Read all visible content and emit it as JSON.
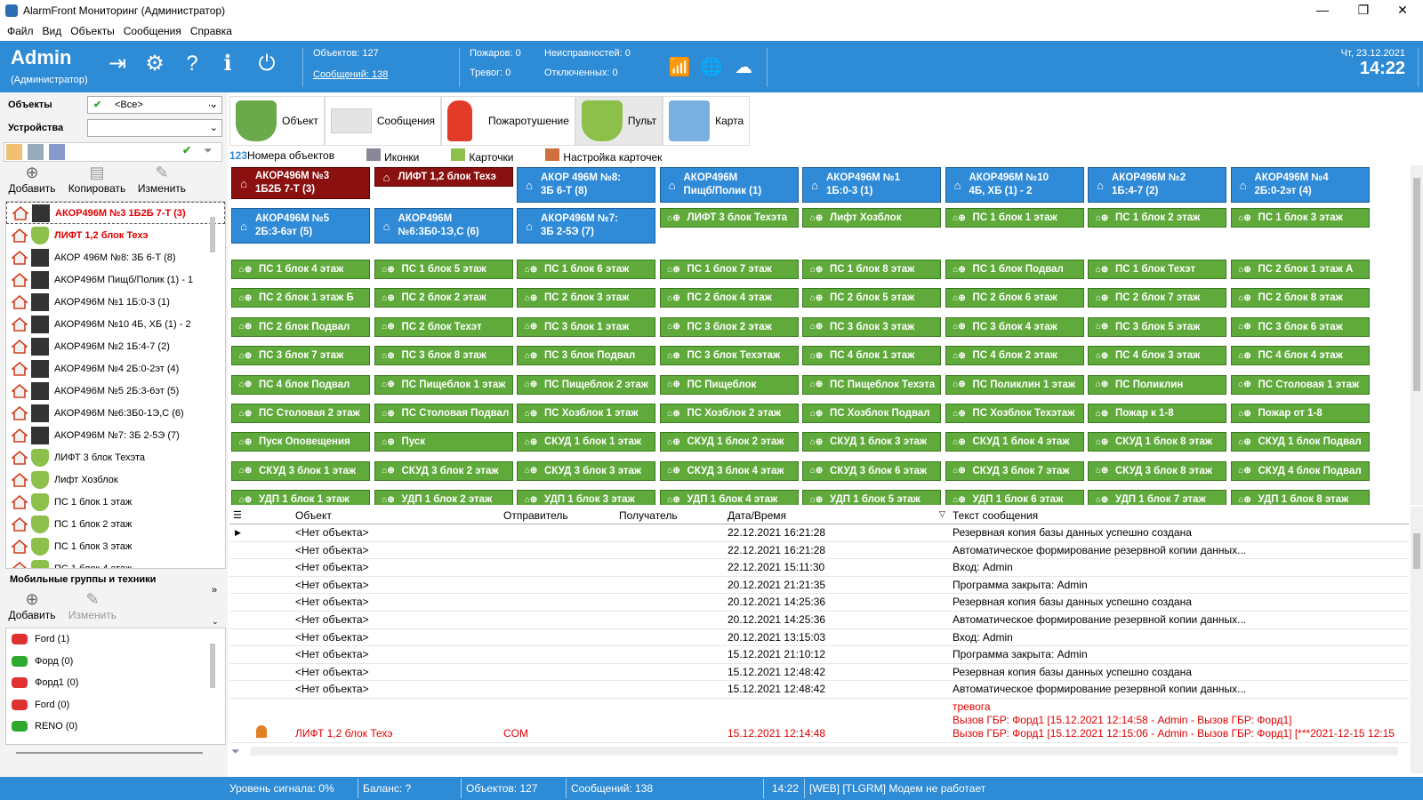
{
  "window": {
    "title": "AlarmFront Мониторинг (Администратор)"
  },
  "menu": [
    "Файл",
    "Вид",
    "Объекты",
    "Сообщения",
    "Справка"
  ],
  "header": {
    "user": "Admin",
    "role": "(Администратор)",
    "objects": "Объектов: 127",
    "messages": "Сообщений: 138",
    "fires": "Пожаров: 0",
    "alarms": "Тревог: 0",
    "faults": "Неисправностей: 0",
    "disabled": "Отключенных: 0",
    "date": "Чт, 23.12.2021",
    "time": "14:22"
  },
  "left": {
    "objects_label": "Объекты",
    "devices_label": "Устройства",
    "objects_value": "<Все>",
    "more": "...",
    "add": "Добавить",
    "copy": "Копировать",
    "edit": "Изменить",
    "mobile_title": "Мобильные группы и техники",
    "add2": "Добавить",
    "edit2": "Изменить",
    "tree": [
      {
        "label": "АКОР496М №3 1Б2Б 7-Т (3)",
        "red": true,
        "kind": "dev"
      },
      {
        "label": "ЛИФТ 1,2 блок Техэ",
        "red": true,
        "kind": "shield"
      },
      {
        "label": "АКОР 496М №8: 3Б 6-Т (8)",
        "red": false,
        "kind": "dev"
      },
      {
        "label": "АКОР496М Пищб/Полик (1) - 1",
        "red": false,
        "kind": "dev"
      },
      {
        "label": "АКОР496М №1 1Б:0-3 (1)",
        "red": false,
        "kind": "dev"
      },
      {
        "label": "АКОР496М №10 4Б, ХБ (1) - 2",
        "red": false,
        "kind": "dev"
      },
      {
        "label": "АКОР496М №2 1Б:4-7 (2)",
        "red": false,
        "kind": "dev"
      },
      {
        "label": "АКОР496М №4 2Б:0-2эт (4)",
        "red": false,
        "kind": "dev"
      },
      {
        "label": "АКОР496М №5 2Б:3-6эт (5)",
        "red": false,
        "kind": "dev"
      },
      {
        "label": "АКОР496М №6:3Б0-1Э,С (6)",
        "red": false,
        "kind": "dev"
      },
      {
        "label": "АКОР496М №7: 3Б 2-5Э (7)",
        "red": false,
        "kind": "dev"
      },
      {
        "label": "ЛИФТ 3 блок Техэта",
        "red": false,
        "kind": "shield"
      },
      {
        "label": "Лифт Хозблок",
        "red": false,
        "kind": "shield"
      },
      {
        "label": "ПС 1 блок 1 этаж",
        "red": false,
        "kind": "shield"
      },
      {
        "label": "ПС 1 блок 2 этаж",
        "red": false,
        "kind": "shield"
      },
      {
        "label": "ПС 1 блок 3 этаж",
        "red": false,
        "kind": "shield"
      },
      {
        "label": "ПС 1 блок 4 этаж",
        "red": false,
        "kind": "shield"
      }
    ],
    "vehicles": [
      {
        "label": "Ford (1)",
        "color": "#e03030"
      },
      {
        "label": "Форд (0)",
        "color": "#2fa82f"
      },
      {
        "label": "Форд1 (0)",
        "color": "#e03030"
      },
      {
        "label": "Ford (0)",
        "color": "#e03030"
      },
      {
        "label": "RENO (0)",
        "color": "#2fa82f"
      }
    ]
  },
  "tabs": [
    {
      "label": "Объект"
    },
    {
      "label": "Сообщения"
    },
    {
      "label": "Пожаротушение"
    },
    {
      "label": "Пульт"
    },
    {
      "label": "Карта"
    }
  ],
  "subtabs": [
    "Номера объектов",
    "Иконки",
    "Карточки",
    "Настройка карточек"
  ],
  "subtab_prefix": "123",
  "buttons_blue": [
    {
      "line1": "АКОР496М №3",
      "line2": "1Б2Б 7-Т (3)",
      "style": "red"
    },
    {
      "line1": "ЛИФТ 1,2 блок Техэ",
      "line2": "",
      "style": "red1"
    },
    {
      "line1": "АКОР 496М №8:",
      "line2": "3Б 6-Т (8)",
      "style": "blue"
    },
    {
      "line1": "АКОР496М",
      "line2": "Пищб/Полик (1)",
      "style": "blue"
    },
    {
      "line1": "АКОР496М №1",
      "line2": "1Б:0-3 (1)",
      "style": "blue"
    },
    {
      "line1": "АКОР496М №10",
      "line2": "4Б, ХБ (1) - 2",
      "style": "blue"
    },
    {
      "line1": "АКОР496М №2",
      "line2": "1Б:4-7 (2)",
      "style": "blue"
    },
    {
      "line1": "АКОР496М №4",
      "line2": "2Б:0-2эт (4)",
      "style": "blue"
    },
    {
      "line1": "АКОР496М №5",
      "line2": "2Б:3-6эт (5)",
      "style": "blue"
    },
    {
      "line1": "АКОР496М",
      "line2": "№6:3Б0-1Э,С (6)",
      "style": "blue"
    },
    {
      "line1": "АКОР496М №7:",
      "line2": "3Б 2-5Э (7)",
      "style": "blue"
    }
  ],
  "buttons_green": [
    "ЛИФТ 3 блок Техэта",
    "Лифт Хозблок",
    "ПС 1 блок 1 этаж",
    "ПС 1 блок 2 этаж",
    "ПС 1 блок 3 этаж",
    "ПС 1 блок 4 этаж",
    "ПС 1 блок 5 этаж",
    "ПС 1 блок 6 этаж",
    "ПС 1 блок 7 этаж",
    "ПС 1 блок 8 этаж",
    "ПС 1 блок Подвал",
    "ПС 1 блок Техэт",
    "ПС 2 блок 1 этаж А",
    "ПС 2 блок 1 этаж Б",
    "ПС 2 блок 2 этаж",
    "ПС 2 блок 3 этаж",
    "ПС 2 блок 4 этаж",
    "ПС 2 блок 5 этаж",
    "ПС 2 блок 6 этаж",
    "ПС 2 блок 7 этаж",
    "ПС 2 блок 8 этаж",
    "ПС 2 блок Подвал",
    "ПС 2 блок Техэт",
    "ПС 3 блок 1 этаж",
    "ПС 3 блок 2 этаж",
    "ПС 3 блок 3 этаж",
    "ПС 3 блок 4 этаж",
    "ПС 3 блок 5 этаж",
    "ПС 3 блок 6 этаж",
    "ПС 3 блок 7 этаж",
    "ПС 3 блок 8 этаж",
    "ПС 3 блок Подвал",
    "ПС 3 блок Техэтаж",
    "ПС 4 блок 1 этаж",
    "ПС 4 блок 2 этаж",
    "ПС 4 блок 3 этаж",
    "ПС 4 блок 4 этаж",
    "ПС 4 блок Подвал",
    "ПС Пищеблок 1 этаж",
    "ПС Пищеблок 2 этаж",
    "ПС Пищеблок",
    "ПС Пищеблок Техэта",
    "ПС Поликлин 1 этаж",
    "ПС Поликлин",
    "ПС Столовая 1 этаж",
    "ПС Столовая 2 этаж",
    "ПС Столовая Подвал",
    "ПС Хозблок 1 этаж",
    "ПС Хозблок 2 этаж",
    "ПС Хозблок Подвал",
    "ПС Хозблок Техэтаж",
    "Пожар к 1-8",
    "Пожар от 1-8",
    "Пуск Оповещения",
    "Пуск",
    "СКУД 1 блок 1 этаж",
    "СКУД 1 блок 2 этаж",
    "СКУД 1 блок 3 этаж",
    "СКУД 1 блок 4 этаж",
    "СКУД 1 блок 8 этаж",
    "СКУД 1 блок Подвал",
    "СКУД 3 блок 1 этаж",
    "СКУД 3 блок 2 этаж",
    "СКУД 3 блок 3 этаж",
    "СКУД 3 блок 4 этаж",
    "СКУД 3 блок 6 этаж",
    "СКУД 3 блок 7 этаж",
    "СКУД 3 блок 8 этаж",
    "СКУД 4 блок Подвал",
    "УДП 1 блок 1 этаж",
    "УДП 1 блок 2 этаж",
    "УДП 1 блок 3 этаж",
    "УДП 1 блок 4 этаж",
    "УДП 1 блок 5 этаж",
    "УДП 1 блок 6 этаж",
    "УДП 1 блок 7 этаж",
    "УДП 1 блок 8 этаж"
  ],
  "log": {
    "columns": [
      "Объект",
      "Отправитель",
      "Получатель",
      "Дата/Время",
      "Текст сообщения"
    ],
    "rows": [
      {
        "obj": "<Нет объекта>",
        "dt": "22.12.2021 16:21:28",
        "msg": "Резервная копия базы данных успешно создана"
      },
      {
        "obj": "<Нет объекта>",
        "dt": "22.12.2021 16:21:28",
        "msg": "Автоматическое формирование резервной копии данных..."
      },
      {
        "obj": "<Нет объекта>",
        "dt": "22.12.2021 15:11:30",
        "msg": "Вход: Admin"
      },
      {
        "obj": "<Нет объекта>",
        "dt": "20.12.2021 21:21:35",
        "msg": "Программа закрыта: Admin"
      },
      {
        "obj": "<Нет объекта>",
        "dt": "20.12.2021 14:25:36",
        "msg": "Резервная копия базы данных успешно создана"
      },
      {
        "obj": "<Нет объекта>",
        "dt": "20.12.2021 14:25:36",
        "msg": "Автоматическое формирование резервной копии данных..."
      },
      {
        "obj": "<Нет объекта>",
        "dt": "20.12.2021 13:15:03",
        "msg": "Вход: Admin"
      },
      {
        "obj": "<Нет объекта>",
        "dt": "15.12.2021 21:10:12",
        "msg": "Программа закрыта: Admin"
      },
      {
        "obj": "<Нет объекта>",
        "dt": "15.12.2021 12:48:42",
        "msg": "Резервная копия базы данных успешно создана"
      },
      {
        "obj": "<Нет объекта>",
        "dt": "15.12.2021 12:48:42",
        "msg": "Автоматическое формирование резервной копии данных..."
      }
    ],
    "alarm": {
      "obj": "ЛИФТ 1,2 блок Техэ",
      "sender": "COM",
      "dt": "15.12.2021 12:14:48",
      "msg1": "тревога",
      "msg2": "Вызов ГБР: Форд1 [15.12.2021 12:14:58 - Admin - Вызов ГБР: Форд1]",
      "msg3": "Вызов ГБР: Форд1 [15.12.2021 12:15:06 - Admin - Вызов ГБР: Форд1] [***2021-12-15 12:15"
    }
  },
  "status": {
    "signal": "Уровень сигнала: 0%",
    "balance": "Баланс: ?",
    "objects": "Объектов: 127",
    "messages": "Сообщений: 138",
    "time": "14:22",
    "modem": "[WEB] [TLGRM] Модем не работает"
  },
  "colors": {
    "accent": "#2e8bd6",
    "btn_blue": "#2f8ad8",
    "btn_green": "#5faa3a",
    "btn_red": "#8b1010",
    "alarm_text": "#e00000"
  }
}
